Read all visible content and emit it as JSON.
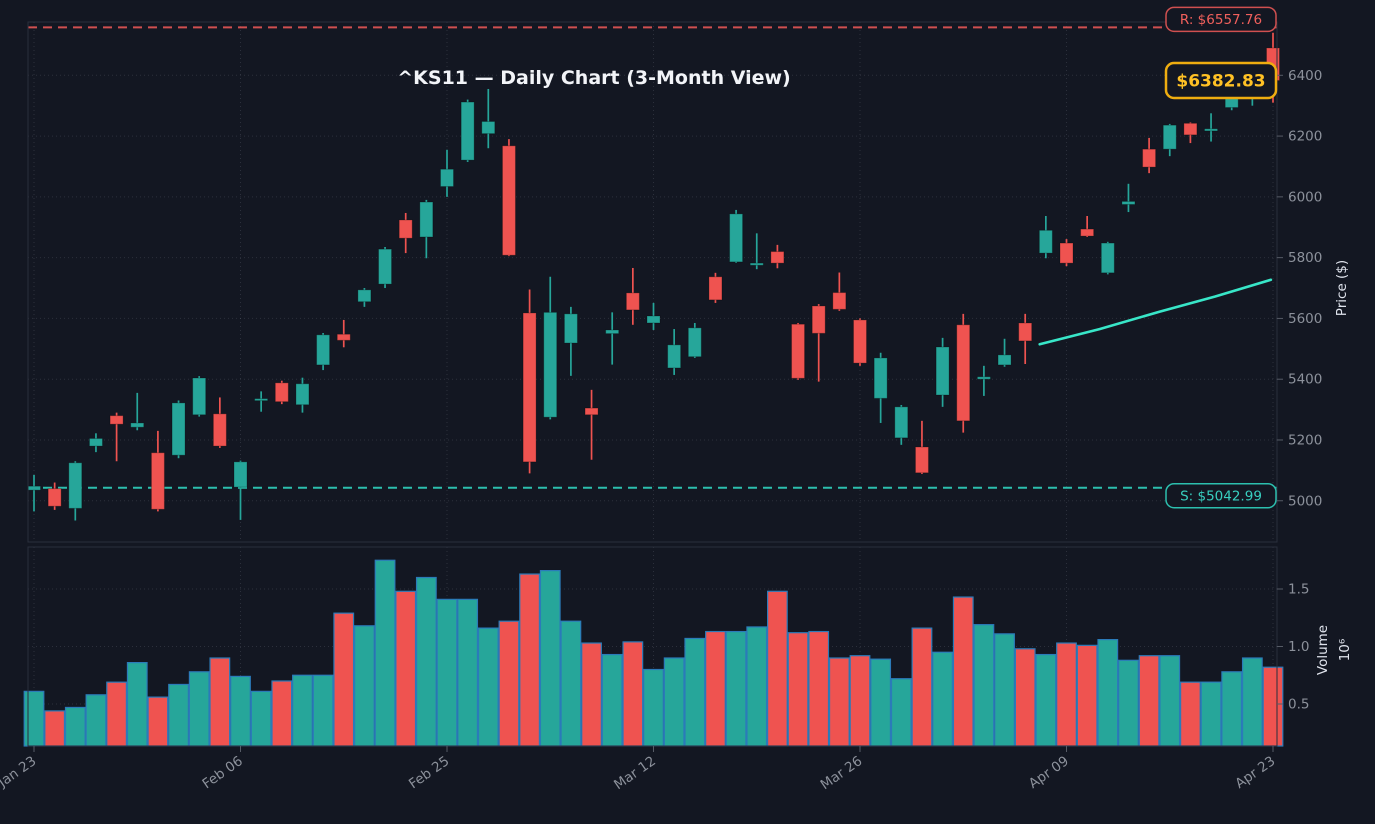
{
  "title": "^KS11 — Daily Chart (3-Month View)",
  "y_axis": {
    "label": "Price ($)",
    "ticks": [
      5000,
      5200,
      5400,
      5600,
      5800,
      6000,
      6200,
      6400
    ]
  },
  "volume_axis": {
    "label": "Volume",
    "scale_label": "10⁶",
    "ticks": [
      0.5,
      1.0,
      1.5
    ]
  },
  "x_axis": {
    "tick_labels": [
      "Jan 23",
      "Feb 06",
      "Feb 25",
      "Mar 12",
      "Mar 26",
      "Apr 09",
      "Apr 23"
    ],
    "tick_indices": [
      0,
      10,
      20,
      30,
      40,
      50,
      60
    ]
  },
  "annotations": {
    "resistance": {
      "label": "R: $6557.76",
      "value": 6557.76
    },
    "support": {
      "label": "S: $5042.99",
      "value": 5042.99
    },
    "last_price": {
      "label": "$6382.83",
      "value": 6382.83
    }
  },
  "colors": {
    "background": "#131722",
    "up": "#26a69a",
    "down": "#ef5350",
    "volume_edge": "#2b7bb9",
    "ma_line": "#38e6c8",
    "resistance": "#d05050",
    "resistance_text": "#f0605c",
    "support": "#2cbfae",
    "support_text": "#38cfc0",
    "price_label_text": "#ffc125",
    "price_label_border": "#eead10",
    "tick_text": "#8c919b",
    "panel_border": "#2a2f3c"
  },
  "chart_data": {
    "type": "candlestick",
    "symbol": "^KS11",
    "interval": "daily",
    "range": "3 months",
    "legend_position": "none",
    "grid": "dotted",
    "price_ylim": [
      4860,
      6600
    ],
    "volume_ylim_millions": [
      0.13,
      1.86
    ],
    "columns": [
      "open",
      "high",
      "low",
      "close",
      "volume_millions"
    ],
    "candles": [
      [
        5035,
        5085,
        4965,
        5048,
        0.61
      ],
      [
        5040,
        5060,
        4970,
        4982,
        0.44
      ],
      [
        4975,
        5130,
        4935,
        5125,
        0.47
      ],
      [
        5180,
        5222,
        5160,
        5205,
        0.58
      ],
      [
        5280,
        5290,
        5130,
        5252,
        0.69
      ],
      [
        5242,
        5355,
        5232,
        5256,
        0.86
      ],
      [
        5158,
        5230,
        4965,
        4972,
        0.56
      ],
      [
        5150,
        5330,
        5140,
        5322,
        0.67
      ],
      [
        5283,
        5410,
        5277,
        5404,
        0.78
      ],
      [
        5286,
        5340,
        5174,
        5180,
        0.9
      ],
      [
        5045,
        5132,
        4937,
        5128,
        0.74
      ],
      [
        5330,
        5360,
        5293,
        5336,
        0.61
      ],
      [
        5388,
        5395,
        5318,
        5326,
        0.7
      ],
      [
        5316,
        5405,
        5290,
        5385,
        0.75
      ],
      [
        5447,
        5552,
        5430,
        5546,
        0.75
      ],
      [
        5548,
        5595,
        5505,
        5528,
        1.29
      ],
      [
        5655,
        5700,
        5638,
        5694,
        1.18
      ],
      [
        5713,
        5835,
        5700,
        5828,
        1.75
      ],
      [
        5924,
        5947,
        5815,
        5864,
        1.48
      ],
      [
        5868,
        5990,
        5798,
        5983,
        1.6
      ],
      [
        6034,
        6155,
        6000,
        6091,
        1.41
      ],
      [
        6121,
        6320,
        6115,
        6312,
        1.41
      ],
      [
        6208,
        6355,
        6160,
        6248,
        1.16
      ],
      [
        6168,
        6190,
        5805,
        5808,
        1.22
      ],
      [
        5618,
        5695,
        5090,
        5128,
        1.63
      ],
      [
        5275,
        5737,
        5268,
        5620,
        1.66
      ],
      [
        5519,
        5638,
        5411,
        5615,
        1.22
      ],
      [
        5305,
        5365,
        5135,
        5283,
        1.03
      ],
      [
        5550,
        5620,
        5448,
        5562,
        0.93
      ],
      [
        5684,
        5766,
        5579,
        5628,
        1.04
      ],
      [
        5585,
        5651,
        5562,
        5608,
        0.8
      ],
      [
        5437,
        5565,
        5414,
        5513,
        0.9
      ],
      [
        5474,
        5585,
        5470,
        5569,
        1.07
      ],
      [
        5737,
        5750,
        5651,
        5661,
        1.13
      ],
      [
        5786,
        5957,
        5783,
        5944,
        1.13
      ],
      [
        5775,
        5880,
        5762,
        5782,
        1.17
      ],
      [
        5820,
        5842,
        5765,
        5782,
        1.48
      ],
      [
        5581,
        5585,
        5398,
        5403,
        1.12
      ],
      [
        5641,
        5647,
        5392,
        5551,
        1.13
      ],
      [
        5685,
        5751,
        5625,
        5630,
        0.9
      ],
      [
        5595,
        5600,
        5444,
        5453,
        0.92
      ],
      [
        5337,
        5487,
        5256,
        5470,
        0.89
      ],
      [
        5207,
        5315,
        5184,
        5309,
        0.72
      ],
      [
        5177,
        5263,
        5088,
        5092,
        1.16
      ],
      [
        5348,
        5536,
        5309,
        5506,
        0.95
      ],
      [
        5579,
        5615,
        5224,
        5263,
        1.43
      ],
      [
        5400,
        5444,
        5345,
        5408,
        1.19
      ],
      [
        5447,
        5533,
        5441,
        5480,
        1.11
      ],
      [
        5585,
        5615,
        5450,
        5526,
        0.98
      ],
      [
        5815,
        5937,
        5798,
        5890,
        0.93
      ],
      [
        5848,
        5861,
        5772,
        5782,
        1.03
      ],
      [
        5894,
        5937,
        5868,
        5871,
        1.01
      ],
      [
        5750,
        5852,
        5745,
        5848,
        1.06
      ],
      [
        5975,
        6043,
        5950,
        5985,
        0.88
      ],
      [
        6157,
        6194,
        6078,
        6098,
        0.92
      ],
      [
        6157,
        6240,
        6134,
        6236,
        0.92
      ],
      [
        6242,
        6245,
        6177,
        6204,
        0.69
      ],
      [
        6217,
        6275,
        6182,
        6224,
        0.69
      ],
      [
        6294,
        6370,
        6285,
        6360,
        0.78
      ],
      [
        6330,
        6395,
        6300,
        6375,
        0.9
      ],
      [
        6490,
        6540,
        6310,
        6382.83,
        0.82
      ]
    ],
    "ma_line": {
      "name": "moving-average",
      "points_index_price": [
        [
          48.7,
          5515
        ],
        [
          51.6,
          5565
        ],
        [
          54.5,
          5622
        ],
        [
          57.2,
          5672
        ],
        [
          59.9,
          5727
        ]
      ]
    }
  }
}
